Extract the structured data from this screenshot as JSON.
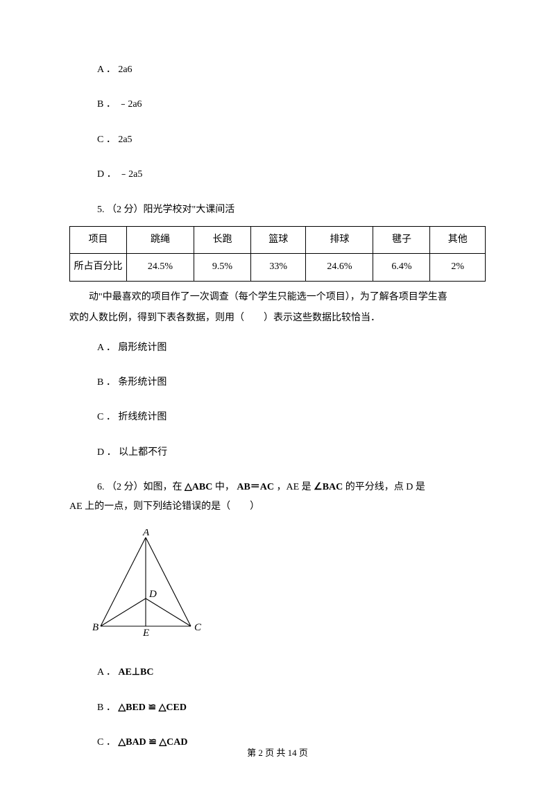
{
  "q4": {
    "options": {
      "a": "A ． 2a6",
      "b": "B ． ﹣2a6",
      "c": "C ． 2a5",
      "d": "D ． ﹣2a5"
    }
  },
  "q5": {
    "intro": "5.  （2 分）阳光学校对\"大课间活",
    "table": {
      "header": [
        "项目",
        "跳绳",
        "长跑",
        "篮球",
        "排球",
        "毽子",
        "其他"
      ],
      "row": [
        "所占百分比",
        "24.5%",
        "9.5%",
        "33%",
        "24.6%",
        "6.4%",
        "2%"
      ]
    },
    "continuation1": "动\"中最喜欢的项目作了一次调查（每个学生只能选一个项目），为了解各项目学生喜",
    "continuation2": "欢的人数比例，得到下表各数据，则用（　　）表示这些数据比较恰当．",
    "options": {
      "a": "A ． 扇形统计图",
      "b": "B ． 条形统计图",
      "c": "C ． 折线统计图",
      "d": "D ． 以上都不行"
    }
  },
  "q6": {
    "intro_pre": "6.  （2 分）如图，在 ",
    "intro_tri": "△ABC",
    "intro_mid": " 中，",
    "intro_eq": "AB＝AC",
    "intro_mid2": " ，AE 是 ",
    "intro_ang": "∠BAC",
    "intro_post": " 的平分线，点 D 是",
    "line2": "AE 上的一点，则下列结论错误的是（　　）",
    "diagram": {
      "labels": {
        "A": "A",
        "B": "B",
        "C": "C",
        "D": "D",
        "E": "E"
      },
      "font": "italic 15px 'Times New Roman', serif",
      "stroke_color": "#000000",
      "stroke_width": 1.1
    },
    "options": {
      "a_pre": "A ．",
      "a_math": "AE⊥BC",
      "b_pre": "B ．",
      "b_math": "△BED ≌ △CED",
      "c_pre": "C ．",
      "c_math": "△BAD ≌ △CAD"
    }
  },
  "footer": "第 2 页 共 14 页"
}
